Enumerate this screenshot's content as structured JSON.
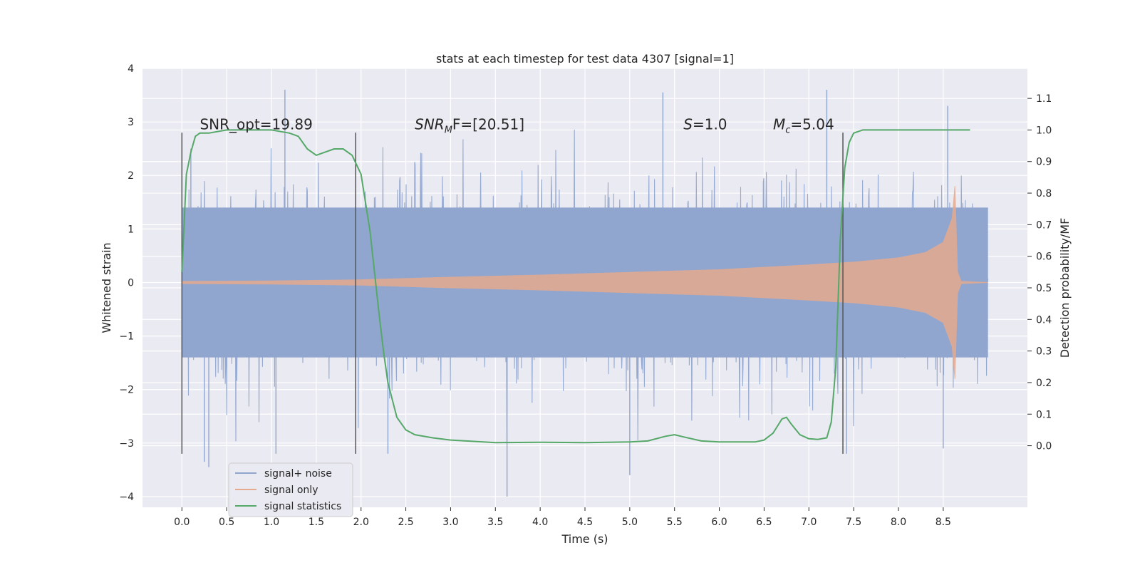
{
  "chart_data": {
    "type": "line",
    "title": "stats at each timestep for test data 4307 [signal=1]",
    "xlabel": "Time (s)",
    "ylabel_left": "Whitened strain",
    "ylabel_right": "Detection probability/MF",
    "xlim": [
      -0.44,
      9.44
    ],
    "ylim_left": [
      -4.2,
      4.0
    ],
    "ylim_right": [
      -0.195,
      1.195
    ],
    "xticks": [
      0.0,
      0.5,
      1.0,
      1.5,
      2.0,
      2.5,
      3.0,
      3.5,
      4.0,
      4.5,
      5.0,
      5.5,
      6.0,
      6.5,
      7.0,
      7.5,
      8.0,
      8.5
    ],
    "xtick_labels": [
      "0.0",
      "0.5",
      "1.0",
      "1.5",
      "2.0",
      "2.5",
      "3.0",
      "3.5",
      "4.0",
      "4.5",
      "5.0",
      "5.5",
      "6.0",
      "6.5",
      "7.0",
      "7.5",
      "8.0",
      "8.5"
    ],
    "yticks_left": [
      -4,
      -3,
      -2,
      -1,
      0,
      1,
      2,
      3,
      4
    ],
    "ytick_labels_left": [
      "−4",
      "−3",
      "−2",
      "−1",
      "0",
      "1",
      "2",
      "3",
      "4"
    ],
    "yticks_right": [
      0.0,
      0.1,
      0.2,
      0.3,
      0.4,
      0.5,
      0.6,
      0.7,
      0.8,
      0.9,
      1.0,
      1.1
    ],
    "ytick_labels_right": [
      "0.0",
      "0.1",
      "0.2",
      "0.3",
      "0.4",
      "0.5",
      "0.6",
      "0.7",
      "0.8",
      "0.9",
      "1.0",
      "1.1"
    ],
    "grid": true,
    "background": "#eaeaf2",
    "annotations": [
      {
        "text": "SNR_opt=19.89",
        "x": 0.2,
        "y": 1.0
      },
      {
        "main": "SNR",
        "sub": "M",
        "tail": "F=[20.51]",
        "x": 2.6,
        "y": 1.0
      },
      {
        "main": "S",
        "tail": "=1.0",
        "x": 5.6,
        "y": 1.0
      },
      {
        "main": "M",
        "sub": "c",
        "tail": "=5.04",
        "x": 6.6,
        "y": 1.0
      }
    ],
    "vlines": [
      {
        "x": 0.0,
        "ymin": -3.2,
        "ymax": 2.8
      },
      {
        "x": 1.94,
        "ymin": -3.2,
        "ymax": 2.8
      },
      {
        "x": 7.38,
        "ymin": -3.2,
        "ymax": 2.8
      }
    ],
    "legend": {
      "position": "lower-left",
      "entries": [
        {
          "label": "signal+ noise",
          "color": "#91a6cf"
        },
        {
          "label": "signal only",
          "color": "#e6aa8e"
        },
        {
          "label": "signal statistics",
          "color": "#55a868"
        }
      ]
    },
    "series": [
      {
        "name": "signal+ noise",
        "color": "#91a6cf",
        "axis": "left",
        "style": "dense noise band",
        "x_start": 0.0,
        "x_end": 9.0,
        "band_amplitude": 1.4,
        "peak_extremes": [
          {
            "x": 0.1,
            "y": 2.5
          },
          {
            "x": 0.25,
            "y": -3.35
          },
          {
            "x": 0.3,
            "y": -3.45
          },
          {
            "x": 1.15,
            "y": 3.6
          },
          {
            "x": 1.05,
            "y": -3.2
          },
          {
            "x": 2.3,
            "y": -3.2
          },
          {
            "x": 3.63,
            "y": -4.0
          },
          {
            "x": 5.0,
            "y": -3.6
          },
          {
            "x": 5.37,
            "y": 3.55
          },
          {
            "x": 7.2,
            "y": 3.6
          },
          {
            "x": 7.42,
            "y": -3.2
          },
          {
            "x": 8.55,
            "y": 3.3
          },
          {
            "x": 8.5,
            "y": -3.1
          }
        ]
      },
      {
        "name": "signal only",
        "color": "#e6aa8e",
        "axis": "left",
        "style": "chirp envelope",
        "x": [
          0.0,
          1.0,
          2.0,
          3.0,
          4.0,
          5.0,
          6.0,
          7.0,
          7.5,
          8.0,
          8.3,
          8.5,
          8.6,
          8.63,
          8.66,
          8.7,
          9.0
        ],
        "amplitude": [
          0.02,
          0.03,
          0.05,
          0.1,
          0.14,
          0.19,
          0.24,
          0.33,
          0.38,
          0.46,
          0.56,
          0.75,
          1.2,
          1.8,
          0.2,
          0.02,
          0.0
        ]
      },
      {
        "name": "signal statistics",
        "color": "#55a868",
        "axis": "right",
        "x": [
          0.0,
          0.05,
          0.1,
          0.15,
          0.2,
          0.3,
          0.5,
          0.8,
          1.0,
          1.2,
          1.3,
          1.4,
          1.5,
          1.6,
          1.7,
          1.8,
          1.9,
          2.0,
          2.1,
          2.15,
          2.2,
          2.25,
          2.3,
          2.4,
          2.5,
          2.6,
          2.8,
          3.0,
          3.5,
          4.0,
          4.5,
          5.0,
          5.2,
          5.4,
          5.5,
          5.6,
          5.8,
          6.0,
          6.4,
          6.5,
          6.6,
          6.7,
          6.75,
          6.8,
          6.9,
          7.0,
          7.1,
          7.2,
          7.25,
          7.3,
          7.35,
          7.4,
          7.45,
          7.5,
          7.6,
          8.0,
          8.5,
          8.8
        ],
        "y": [
          0.55,
          0.86,
          0.93,
          0.98,
          0.99,
          0.99,
          1.0,
          1.0,
          1.0,
          0.99,
          0.98,
          0.94,
          0.92,
          0.93,
          0.94,
          0.94,
          0.92,
          0.86,
          0.68,
          0.55,
          0.42,
          0.3,
          0.2,
          0.09,
          0.05,
          0.035,
          0.025,
          0.018,
          0.01,
          0.011,
          0.01,
          0.012,
          0.015,
          0.03,
          0.035,
          0.028,
          0.015,
          0.012,
          0.012,
          0.018,
          0.04,
          0.085,
          0.09,
          0.07,
          0.035,
          0.022,
          0.02,
          0.025,
          0.075,
          0.25,
          0.65,
          0.88,
          0.96,
          0.99,
          1.0,
          1.0,
          1.0,
          1.0
        ]
      }
    ]
  }
}
